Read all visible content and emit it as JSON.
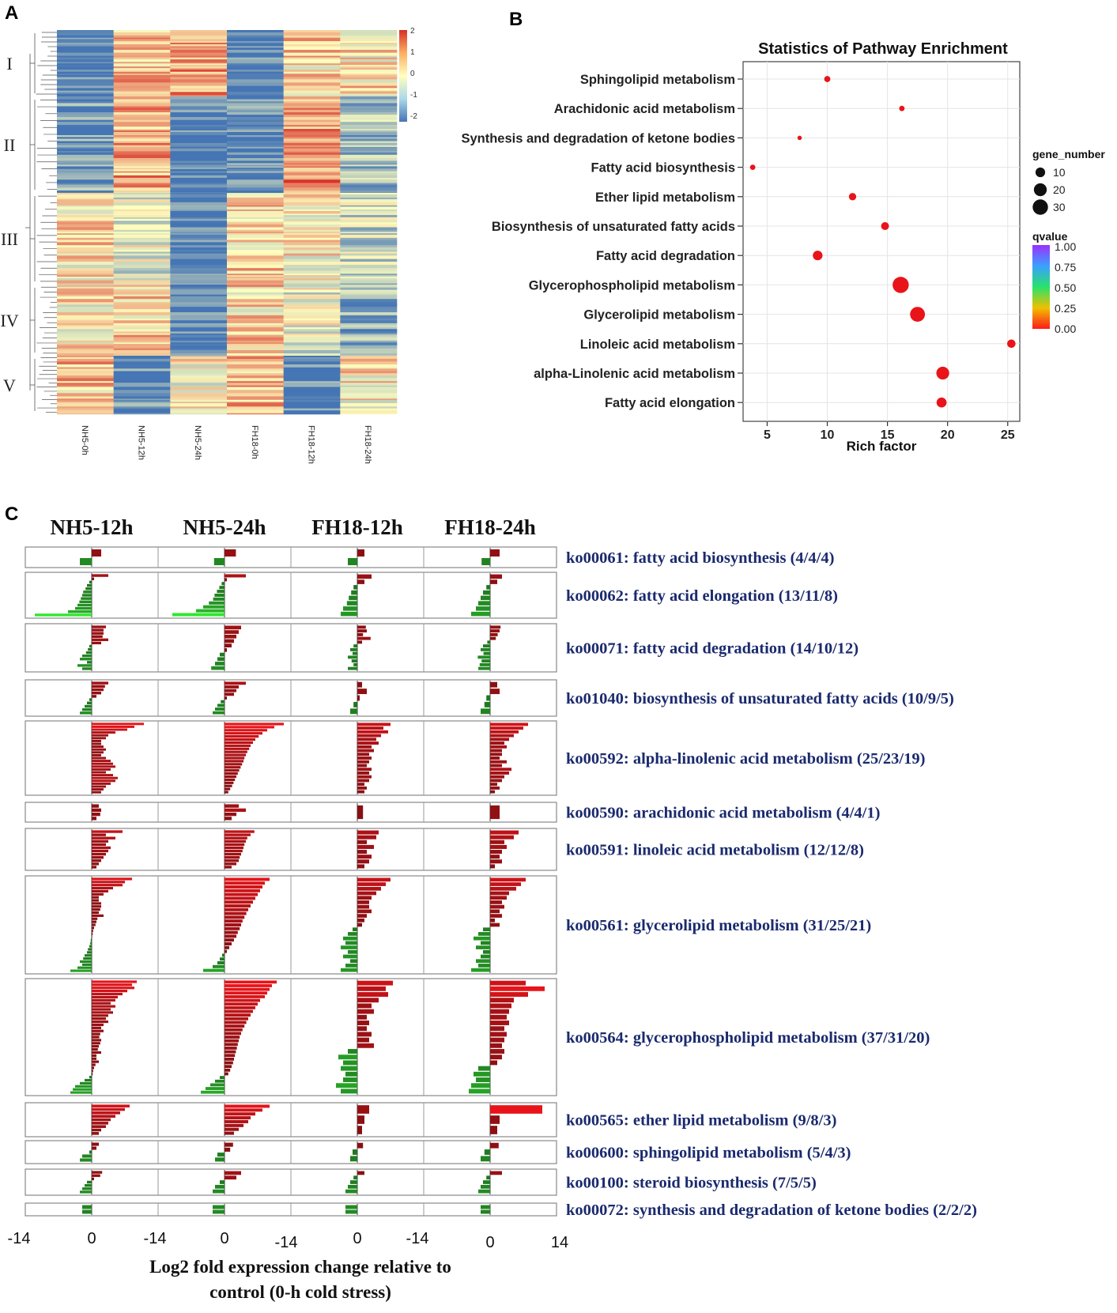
{
  "panels": {
    "a": "A",
    "b": "B",
    "c": "C"
  },
  "chart_data": [
    {
      "id": "A",
      "type": "heatmap",
      "title": "",
      "columns": [
        "NH5-0h",
        "NH5-12h",
        "NH5-24h",
        "FH18-0h",
        "FH18-12h",
        "FH18-24h"
      ],
      "clusters": [
        {
          "name": "I",
          "pattern": [
            -1.9,
            0.6,
            1.0,
            -1.9,
            0.4,
            0.3
          ]
        },
        {
          "name": "II",
          "pattern": [
            -1.5,
            0.9,
            -1.9,
            -1.6,
            1.1,
            -1.0
          ]
        },
        {
          "name": "III",
          "pattern": [
            0.3,
            -0.3,
            -1.9,
            0.5,
            0.1,
            -0.6
          ]
        },
        {
          "name": "IV",
          "pattern": [
            0.2,
            0.5,
            -1.9,
            0.4,
            -0.2,
            -1.2
          ]
        },
        {
          "name": "V",
          "pattern": [
            0.6,
            -1.6,
            0.1,
            0.7,
            -1.7,
            0.2
          ]
        }
      ],
      "color_scale": {
        "min": -2,
        "max": 2,
        "ticks": [
          "2",
          "1",
          "0",
          "-1",
          "-2"
        ],
        "low": "#4575b4",
        "mid": "#ffffbf",
        "high": "#d73027"
      }
    },
    {
      "id": "B",
      "type": "scatter",
      "title": "Statistics of Pathway Enrichment",
      "xlabel": "Rich factor",
      "ylabel": "",
      "xlim": [
        3,
        26
      ],
      "xticks": [
        "5",
        "10",
        "15",
        "20",
        "25"
      ],
      "points": [
        {
          "pathway": "Sphingolipid metabolism",
          "rich_factor": 10.0,
          "gene_number": 3,
          "qvalue": 0.02
        },
        {
          "pathway": "Arachidonic acid metabolism",
          "rich_factor": 16.2,
          "gene_number": 2,
          "qvalue": 0.02
        },
        {
          "pathway": "Synthesis and degradation of ketone bodies",
          "rich_factor": 7.7,
          "gene_number": 1,
          "qvalue": 0.02
        },
        {
          "pathway": "Fatty acid biosynthesis",
          "rich_factor": 3.8,
          "gene_number": 2,
          "qvalue": 0.02
        },
        {
          "pathway": "Ether lipid metabolism",
          "rich_factor": 12.1,
          "gene_number": 5,
          "qvalue": 0.01
        },
        {
          "pathway": "Biosynthesis of unsaturated fatty acids",
          "rich_factor": 14.8,
          "gene_number": 6,
          "qvalue": 0.01
        },
        {
          "pathway": "Fatty acid degradation",
          "rich_factor": 9.2,
          "gene_number": 10,
          "qvalue": 0.01
        },
        {
          "pathway": "Glycerophospholipid metabolism",
          "rich_factor": 16.1,
          "gene_number": 34,
          "qvalue": 0.0
        },
        {
          "pathway": "Glycerolipid metabolism",
          "rich_factor": 17.5,
          "gene_number": 28,
          "qvalue": 0.0
        },
        {
          "pathway": "Linoleic acid metabolism",
          "rich_factor": 25.3,
          "gene_number": 7,
          "qvalue": 0.0
        },
        {
          "pathway": "alpha-Linolenic acid metabolism",
          "rich_factor": 19.6,
          "gene_number": 20,
          "qvalue": 0.0
        },
        {
          "pathway": "Fatty acid elongation",
          "rich_factor": 19.5,
          "gene_number": 11,
          "qvalue": 0.0
        }
      ],
      "legend_size": {
        "title": "gene_number",
        "values": [
          "10",
          "20",
          "30"
        ]
      },
      "legend_color": {
        "title": "qvalue",
        "ticks": [
          "1.00",
          "0.75",
          "0.50",
          "0.25",
          "0.00"
        ]
      }
    },
    {
      "id": "C",
      "type": "bar",
      "title": "",
      "columns": [
        "NH5-12h",
        "NH5-24h",
        "FH18-12h",
        "FH18-24h"
      ],
      "xlim": [
        -14,
        14
      ],
      "xticks": [
        "-14",
        "0",
        "-14",
        "0",
        "-14",
        "0",
        "-14",
        "0",
        "14"
      ],
      "xlabel_line1": "Log2 fold expression change relative to",
      "xlabel_line2": "control (0-h cold stress)",
      "pathways": [
        {
          "label": "ko00061: fatty acid biosynthesis (4/4/4)",
          "values": [
            [
              2.0,
              -2.5
            ],
            [
              2.4,
              -2.2
            ],
            [
              1.5,
              -2.0
            ],
            [
              2.0,
              -1.8
            ]
          ]
        },
        {
          "label": "ko00062: fatty acid elongation (13/11/8)",
          "values": [
            [
              3.5,
              0.5,
              -0.5,
              -1.0,
              -1.3,
              -1.8,
              -2.0,
              -2.3,
              -2.6,
              -3.0,
              -3.5,
              -5.0,
              -12.0
            ],
            [
              4.5,
              0.5,
              -0.6,
              -1.1,
              -1.6,
              -2.1,
              -2.4,
              -3.3,
              -4.5,
              -6.0,
              -11.0
            ],
            [
              3.0,
              1.5,
              -0.8,
              -1.3,
              -1.8,
              -2.2,
              -3.0,
              -3.5
            ],
            [
              2.5,
              1.5,
              -0.8,
              -1.5,
              -2.0,
              -2.5,
              -3.0,
              -4.0
            ]
          ]
        },
        {
          "label": "ko00071: fatty acid degradation (14/10/12)",
          "values": [
            [
              3.0,
              2.5,
              2.5,
              2.3,
              3.5,
              2.0,
              -0.5,
              -0.8,
              -1.2,
              -2.0,
              -2.5,
              -1.0,
              -3.0,
              -2.0
            ],
            [
              3.5,
              3.0,
              2.5,
              2.0,
              1.5,
              0.5,
              -1.0,
              -1.5,
              -2.0,
              -2.8
            ],
            [
              1.8,
              2.0,
              1.2,
              2.8,
              1.0,
              -0.8,
              -1.5,
              -1.0,
              -2.0,
              -1.2,
              -0.8,
              -2.0
            ],
            [
              2.2,
              2.0,
              1.6,
              1.2,
              -0.6,
              -1.5,
              -2.0,
              -1.4,
              -2.6,
              -1.8,
              -2.2,
              -2.5
            ]
          ]
        },
        {
          "label": "ko01040: biosynthesis of unsaturated fatty acids (10/9/5)",
          "values": [
            [
              3.5,
              2.8,
              2.5,
              2.0,
              1.0,
              -0.5,
              -1.0,
              -1.5,
              -2.0,
              -2.5
            ],
            [
              4.5,
              3.0,
              2.5,
              2.0,
              0.5,
              -0.8,
              -1.5,
              -2.0,
              -2.5
            ],
            [
              1.0,
              2.0,
              0.5,
              -0.8,
              -1.5
            ],
            [
              1.5,
              2.0,
              -0.8,
              -1.2,
              -2.0
            ]
          ]
        },
        {
          "label": "ko00592: alpha-linolenic acid metabolism (25/23/19)",
          "values": [
            [
              11.0,
              9.0,
              7.5,
              5.0,
              3.5,
              3.0,
              2.0,
              2.0,
              2.5,
              3.0,
              2.5,
              2.0,
              3.0,
              4.0,
              4.5,
              5.0,
              4.0,
              3.0,
              4.5,
              5.5,
              5.0,
              4.0,
              3.0,
              2.5,
              2.0
            ],
            [
              12.5,
              10.5,
              9.0,
              8.0,
              7.2,
              6.5,
              6.0,
              5.5,
              5.2,
              4.8,
              4.5,
              4.2,
              4.0,
              3.7,
              3.4,
              3.1,
              2.8,
              2.5,
              2.2,
              1.9,
              1.6,
              1.2,
              0.8
            ],
            [
              7.0,
              5.5,
              6.5,
              5.0,
              4.0,
              4.5,
              3.0,
              3.5,
              2.5,
              3.0,
              2.5,
              2.0,
              3.0,
              2.5,
              3.0,
              2.5,
              1.5,
              2.0,
              1.5
            ],
            [
              8.0,
              7.0,
              6.0,
              5.0,
              4.0,
              3.0,
              3.5,
              2.5,
              2.5,
              2.0,
              3.5,
              2.5,
              4.5,
              4.0,
              3.0,
              2.5,
              1.5,
              2.0,
              1.0
            ]
          ]
        },
        {
          "label": "ko00590: arachidonic acid metabolism (4/4/1)",
          "values": [
            [
              1.5,
              2.0,
              1.8,
              1.0
            ],
            [
              3.0,
              4.5,
              2.5,
              1.5
            ],
            [
              1.2
            ],
            [
              2.0
            ]
          ]
        },
        {
          "label": "ko00591: linoleic acid metabolism (12/12/8)",
          "values": [
            [
              6.5,
              3.0,
              5.0,
              3.5,
              3.0,
              4.0,
              3.5,
              3.0,
              2.5,
              2.0,
              1.5,
              1.0
            ],
            [
              6.3,
              5.5,
              4.8,
              4.5,
              4.2,
              4.0,
              3.8,
              3.5,
              3.2,
              3.0,
              2.5,
              1.5
            ],
            [
              4.5,
              4.0,
              2.0,
              3.5,
              2.0,
              3.0,
              2.5,
              1.5
            ],
            [
              6.0,
              5.0,
              3.0,
              3.5,
              2.5,
              2.0,
              2.5,
              1.0
            ]
          ]
        },
        {
          "label": "ko00561: glycerolipid metabolism (31/25/21)",
          "values": [
            [
              8.5,
              7.0,
              6.5,
              4.5,
              3.5,
              2.5,
              1.5,
              1.5,
              2.0,
              2.0,
              1.8,
              1.5,
              2.5,
              1.2,
              1.0,
              0.8,
              0.5,
              0.3,
              0.2,
              0.1,
              -0.2,
              -0.3,
              -0.5,
              -0.8,
              -1.0,
              -1.5,
              -1.8,
              -2.5,
              -2.0,
              -3.0,
              -4.5
            ],
            [
              9.5,
              8.5,
              8.0,
              7.5,
              7.0,
              6.5,
              6.0,
              5.5,
              5.0,
              4.6,
              4.2,
              3.8,
              3.5,
              3.2,
              2.8,
              2.5,
              2.0,
              1.5,
              1.0,
              0.5,
              -0.5,
              -1.0,
              -1.5,
              -2.5,
              -4.5
            ],
            [
              7.0,
              6.0,
              5.0,
              4.0,
              3.0,
              2.5,
              2.5,
              3.0,
              2.0,
              1.5,
              1.0,
              -1.0,
              -2.0,
              -3.0,
              -2.5,
              -3.5,
              -2.0,
              -3.0,
              -1.5,
              -2.5,
              -3.5
            ],
            [
              7.5,
              6.5,
              5.5,
              4.0,
              3.5,
              2.5,
              3.0,
              2.0,
              2.5,
              1.0,
              2.0,
              -1.5,
              -2.5,
              -3.5,
              -2.0,
              -3.0,
              -1.5,
              -2.0,
              -3.0,
              -2.5,
              -4.0
            ]
          ]
        },
        {
          "label": "ko00564: glycerophospholipid metabolism (37/31/20)",
          "values": [
            [
              9.5,
              8.5,
              9.0,
              7.5,
              6.5,
              5.5,
              5.0,
              4.0,
              5.0,
              4.0,
              4.5,
              3.5,
              3.0,
              3.5,
              2.5,
              2.0,
              2.5,
              1.8,
              1.6,
              2.0,
              1.8,
              1.5,
              1.3,
              2.0,
              1.0,
              1.0,
              1.5,
              0.8,
              0.5,
              0.3,
              0.2,
              -0.5,
              -1.5,
              -2.5,
              -3.5,
              -4.0,
              -4.5
            ],
            [
              11.0,
              10.0,
              9.5,
              9.0,
              8.5,
              7.5,
              7.0,
              6.5,
              6.0,
              5.5,
              5.0,
              4.6,
              4.2,
              3.8,
              3.5,
              3.2,
              3.0,
              2.8,
              2.6,
              2.4,
              2.2,
              2.0,
              1.8,
              1.5,
              1.2,
              0.8,
              -1.0,
              -2.0,
              -3.0,
              -4.0,
              -5.0
            ],
            [
              7.5,
              6.0,
              6.5,
              4.5,
              3.0,
              3.5,
              2.0,
              2.5,
              2.0,
              3.0,
              2.5,
              3.5,
              -2.0,
              -4.0,
              -3.0,
              -3.5,
              -2.5,
              -3.0,
              -4.5,
              -3.5
            ],
            [
              7.5,
              11.5,
              8.0,
              5.0,
              4.5,
              4.0,
              3.5,
              4.0,
              3.0,
              3.5,
              3.0,
              2.5,
              3.0,
              2.5,
              1.5,
              -2.5,
              -3.5,
              -3.0,
              -4.0,
              -4.5
            ]
          ]
        },
        {
          "label": "ko00565: ether lipid metabolism (9/8/3)",
          "values": [
            [
              8.0,
              7.0,
              6.0,
              5.0,
              4.0,
              3.5,
              3.0,
              2.0,
              1.5
            ],
            [
              9.5,
              8.0,
              6.5,
              5.5,
              5.0,
              4.0,
              3.0,
              2.0
            ],
            [
              2.5,
              1.5,
              1.0
            ],
            [
              11.0,
              2.0,
              1.5
            ]
          ]
        },
        {
          "label": "ko00600: sphingolipid metabolism (5/4/3)",
          "values": [
            [
              1.5,
              1.0,
              -0.5,
              -2.0,
              -2.5
            ],
            [
              1.8,
              1.2,
              -1.5,
              -2.0
            ],
            [
              1.2,
              -1.0,
              -1.5
            ],
            [
              1.8,
              -1.2,
              -2.0
            ]
          ]
        },
        {
          "label": "ko00100: steroid biosynthesis (7/5/5)",
          "values": [
            [
              2.2,
              1.8,
              0.5,
              -1.0,
              -1.5,
              -2.0,
              -2.5
            ],
            [
              3.5,
              2.5,
              -1.0,
              -2.0,
              -2.5
            ],
            [
              1.5,
              -0.8,
              -1.5,
              -2.0,
              -2.5
            ],
            [
              2.5,
              -0.8,
              -1.5,
              -2.0,
              -2.5
            ]
          ]
        },
        {
          "label": "ko00072: synthesis and degradation of ketone bodies (2/2/2)",
          "values": [
            [
              -2.0,
              -2.0
            ],
            [
              -2.5,
              -2.5
            ],
            [
              -2.5,
              -2.5
            ],
            [
              -2.0,
              -2.0
            ]
          ]
        }
      ]
    }
  ],
  "colors": {
    "up_bright": "#e8141a",
    "up_dark": "#7a0f12",
    "down_bright": "#2ee82e",
    "down_dark": "#1f6b1f",
    "point_red": "#e8141a",
    "label_navy": "#1a2a6e"
  }
}
